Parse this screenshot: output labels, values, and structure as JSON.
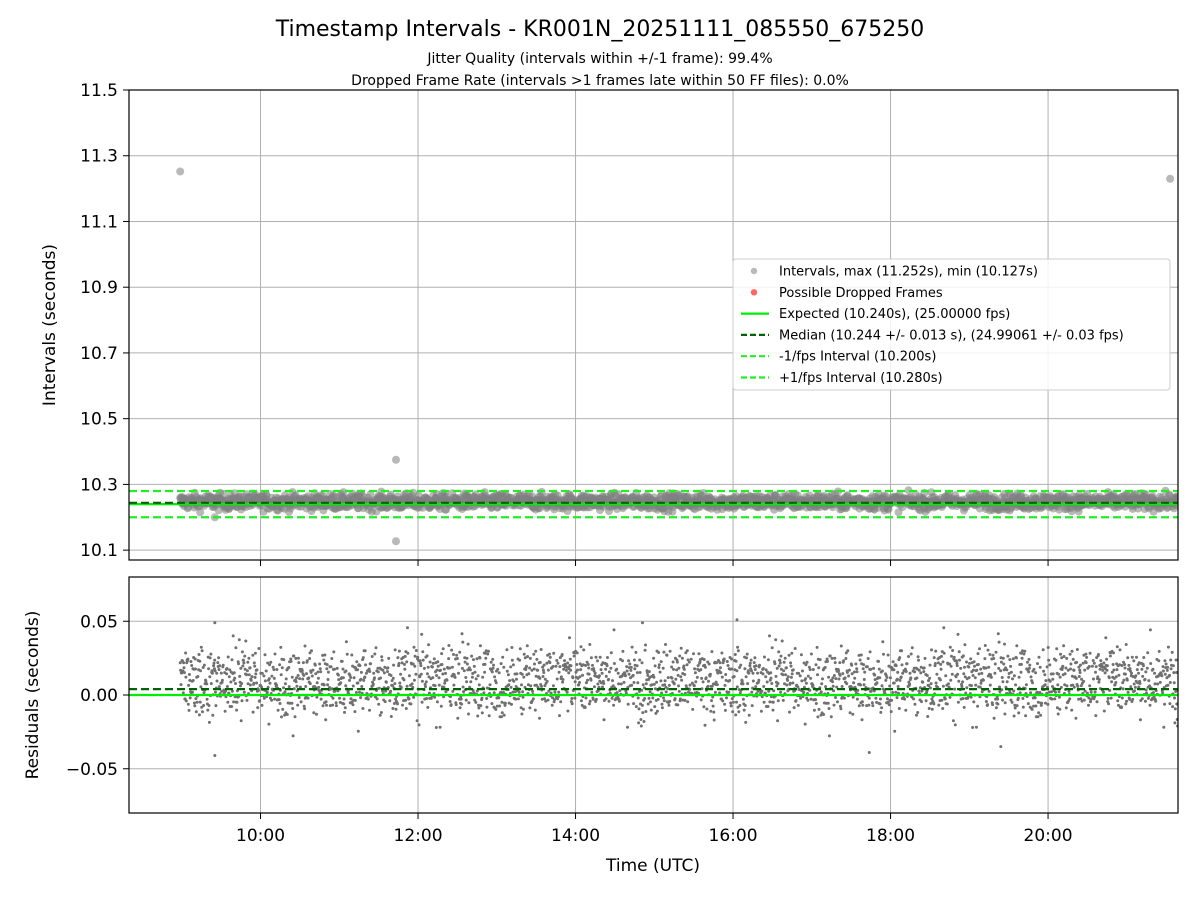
{
  "title": "Timestamp Intervals - KR001N_20251111_085550_675250",
  "subtitle_lines": [
    "Jitter Quality (intervals within +/-1 frame): 99.4%",
    "Dropped Frame Rate (intervals >1 frames late within 50 FF files): 0.0%"
  ],
  "colors": {
    "interval_points": "#808080",
    "dropped_points": "#ff5555",
    "expected_line": "#00ee00",
    "median_line": "#006400",
    "fps_band_lines": "#22ee22",
    "grid": "#b0b0b0",
    "residual_points": "#707070"
  },
  "chart_data": [
    {
      "type": "scatter",
      "panel": "top",
      "ylabel": "Intervals (seconds)",
      "xlabel": "",
      "xlim_hours": [
        8.33,
        21.65
      ],
      "ylim": [
        10.07,
        11.5
      ],
      "yticks": [
        10.1,
        10.3,
        10.5,
        10.7,
        10.9,
        11.1,
        11.3,
        11.5
      ],
      "ytick_labels": [
        "10.1",
        "10.3",
        "10.5",
        "10.7",
        "10.9",
        "11.1",
        "11.3",
        "11.5"
      ],
      "xticks_hours": [
        10,
        12,
        14,
        16,
        18,
        20
      ],
      "grid": true,
      "series": [
        {
          "name": "Intervals, max (11.252s), min (10.127s)",
          "kind": "scatter",
          "sampled": true,
          "start_hour": 8.98,
          "end_hour": 21.65,
          "count": 2000,
          "center": 10.247,
          "spread": 0.02
        },
        {
          "name": "Possible Dropped Frames",
          "kind": "scatter",
          "values": []
        },
        {
          "name": "Expected (10.240s), (25.00000 fps)",
          "kind": "hline",
          "y": 10.24,
          "style": "solid"
        },
        {
          "name": "Median (10.244 +/- 0.013 s), (24.99061 +/- 0.03 fps)",
          "kind": "hline",
          "y": 10.244,
          "style": "dashed"
        },
        {
          "name": "-1/fps Interval (10.200s)",
          "kind": "hline",
          "y": 10.2,
          "style": "dashed"
        },
        {
          "name": "+1/fps Interval (10.280s)",
          "kind": "hline",
          "y": 10.28,
          "style": "dashed"
        }
      ],
      "outliers": [
        {
          "x_hour": 8.98,
          "y": 11.252
        },
        {
          "x_hour": 21.55,
          "y": 11.23
        },
        {
          "x_hour": 11.72,
          "y": 10.375
        },
        {
          "x_hour": 11.72,
          "y": 10.127
        },
        {
          "x_hour": 9.42,
          "y": 10.2
        }
      ],
      "legend": {
        "location": "center-right",
        "entries": [
          "Intervals, max (11.252s), min (10.127s)",
          "Possible Dropped Frames",
          "Expected (10.240s), (25.00000 fps)",
          "Median (10.244 +/- 0.013 s), (24.99061 +/- 0.03 fps)",
          "-1/fps Interval (10.200s)",
          "+1/fps Interval (10.280s)"
        ]
      }
    },
    {
      "type": "scatter",
      "panel": "bottom",
      "ylabel": "Residuals (seconds)",
      "xlabel": "Time (UTC)",
      "xlim_hours": [
        8.33,
        21.65
      ],
      "ylim": [
        -0.08,
        0.08
      ],
      "yticks": [
        -0.05,
        0.0,
        0.05
      ],
      "ytick_labels": [
        "−0.05",
        "0.00",
        "0.05"
      ],
      "xticks_hours": [
        10,
        12,
        14,
        16,
        18,
        20
      ],
      "xtick_labels": [
        "10:00",
        "12:00",
        "14:00",
        "16:00",
        "18:00",
        "20:00"
      ],
      "grid": true,
      "series": [
        {
          "name": "Residuals",
          "kind": "scatter",
          "sampled": true,
          "start_hour": 8.98,
          "end_hour": 21.65,
          "count": 2600,
          "clusters": [
            0.0,
            0.02
          ],
          "spread": 0.022
        },
        {
          "name": "Expected",
          "kind": "hline",
          "y": 0.0,
          "style": "solid"
        },
        {
          "name": "Median offset",
          "kind": "hline",
          "y": 0.004,
          "style": "dashed"
        }
      ],
      "outliers": [
        {
          "x_hour": 9.42,
          "y": -0.041
        },
        {
          "x_hour": 9.42,
          "y": 0.049
        },
        {
          "x_hour": 16.05,
          "y": 0.051
        },
        {
          "x_hour": 14.85,
          "y": 0.049
        },
        {
          "x_hour": 17.73,
          "y": -0.039
        },
        {
          "x_hour": 19.4,
          "y": -0.035
        }
      ]
    }
  ]
}
